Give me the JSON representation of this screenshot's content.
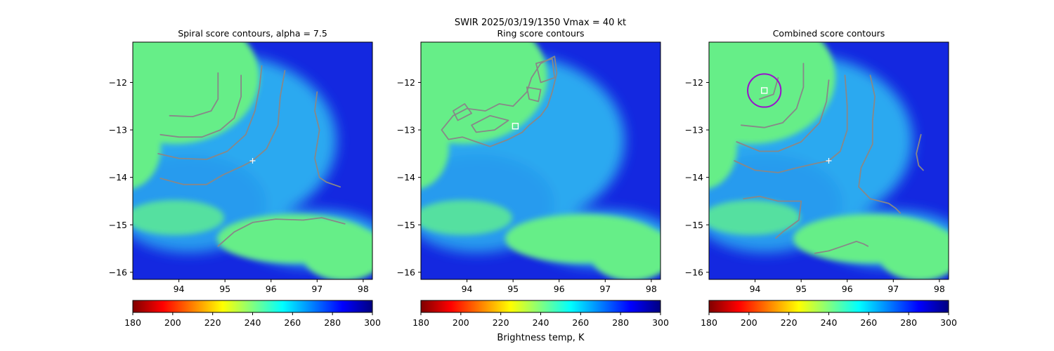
{
  "suptitle": "SWIR  2025/03/19/1350    Vmax = 40 kt",
  "colormap": {
    "name": "jet_r",
    "stops": [
      "#800000",
      "#ff0000",
      "#ff8000",
      "#ffff00",
      "#80ff80",
      "#00ffff",
      "#0080ff",
      "#0000ff",
      "#000080"
    ],
    "vmin": 180,
    "vmax": 300,
    "ticks": [
      "180",
      "200",
      "220",
      "240",
      "260",
      "280",
      "300"
    ],
    "label": "Brightness temp, K"
  },
  "colors": {
    "cloud_cold": "#66ee88",
    "cloud_mid": "#2fb8f2",
    "sea_warm": "#1428e0",
    "contour": "#888888",
    "marker": "#ffffff",
    "circle": "#9911cc"
  },
  "chart_data": [
    {
      "type": "heatmap",
      "title": "Spiral score contours, alpha =  7.5",
      "xlim": [
        93.0,
        98.2
      ],
      "ylim": [
        -16.15,
        -11.15
      ],
      "xticks": [
        "94",
        "95",
        "96",
        "97",
        "98"
      ],
      "yticks": [
        "−12",
        "−13",
        "−14",
        "−15",
        "−16"
      ],
      "center_cross": {
        "lon": 95.6,
        "lat": -13.65
      },
      "contours": [
        [
          [
            93.8,
            -12.7
          ],
          [
            94.3,
            -12.72
          ],
          [
            94.7,
            -12.6
          ],
          [
            94.85,
            -12.35
          ],
          [
            94.85,
            -11.8
          ]
        ],
        [
          [
            93.6,
            -13.1
          ],
          [
            94.0,
            -13.15
          ],
          [
            94.5,
            -13.15
          ],
          [
            94.9,
            -13.0
          ],
          [
            95.2,
            -12.75
          ],
          [
            95.35,
            -12.3
          ],
          [
            95.35,
            -11.85
          ]
        ],
        [
          [
            93.55,
            -13.5
          ],
          [
            94.0,
            -13.6
          ],
          [
            94.6,
            -13.62
          ],
          [
            95.05,
            -13.45
          ],
          [
            95.45,
            -13.1
          ],
          [
            95.65,
            -12.6
          ],
          [
            95.75,
            -12.1
          ],
          [
            95.8,
            -11.65
          ]
        ],
        [
          [
            93.6,
            -14.02
          ],
          [
            94.1,
            -14.15
          ],
          [
            94.6,
            -14.15
          ],
          [
            94.95,
            -13.95
          ],
          [
            95.4,
            -13.75
          ],
          [
            95.6,
            -13.65
          ],
          [
            95.9,
            -13.4
          ],
          [
            96.15,
            -12.9
          ],
          [
            96.2,
            -12.3
          ],
          [
            96.3,
            -11.75
          ]
        ],
        [
          [
            97.0,
            -12.2
          ],
          [
            96.95,
            -12.6
          ],
          [
            97.05,
            -13.0
          ],
          [
            96.95,
            -13.6
          ],
          [
            97.05,
            -14.0
          ],
          [
            97.2,
            -14.1
          ],
          [
            97.5,
            -14.2
          ]
        ],
        [
          [
            94.85,
            -15.45
          ],
          [
            95.2,
            -15.15
          ],
          [
            95.6,
            -14.95
          ],
          [
            96.1,
            -14.88
          ],
          [
            96.7,
            -14.9
          ],
          [
            97.1,
            -14.85
          ],
          [
            97.6,
            -14.98
          ]
        ]
      ],
      "circle": null,
      "square": null
    },
    {
      "type": "heatmap",
      "title": "Ring score contours",
      "xlim": [
        93.0,
        98.2
      ],
      "ylim": [
        -16.15,
        -11.15
      ],
      "xticks": [
        "94",
        "95",
        "96",
        "97",
        "98"
      ],
      "yticks": [
        "−12",
        "−13",
        "−14",
        "−15",
        "−16"
      ],
      "center_cross": null,
      "contours": [
        [
          [
            93.45,
            -13.0
          ],
          [
            93.7,
            -12.7
          ],
          [
            94.0,
            -12.55
          ],
          [
            94.4,
            -12.6
          ],
          [
            94.7,
            -12.45
          ],
          [
            95.0,
            -12.5
          ],
          [
            95.3,
            -12.2
          ],
          [
            95.4,
            -11.9
          ],
          [
            95.6,
            -11.6
          ],
          [
            95.9,
            -11.45
          ],
          [
            95.95,
            -11.8
          ],
          [
            95.85,
            -12.2
          ],
          [
            95.75,
            -12.5
          ],
          [
            95.6,
            -12.7
          ],
          [
            95.35,
            -12.9
          ],
          [
            95.2,
            -13.05
          ],
          [
            94.9,
            -13.2
          ],
          [
            94.5,
            -13.35
          ],
          [
            94.2,
            -13.25
          ],
          [
            93.9,
            -13.15
          ],
          [
            93.6,
            -13.2
          ],
          [
            93.45,
            -13.0
          ]
        ],
        [
          [
            94.1,
            -12.9
          ],
          [
            94.5,
            -12.7
          ],
          [
            94.9,
            -12.8
          ],
          [
            94.6,
            -13.0
          ],
          [
            94.2,
            -13.05
          ],
          [
            94.1,
            -12.9
          ]
        ],
        [
          [
            95.5,
            -11.6
          ],
          [
            95.85,
            -11.5
          ],
          [
            95.9,
            -11.9
          ],
          [
            95.6,
            -12.0
          ],
          [
            95.5,
            -11.6
          ]
        ],
        [
          [
            93.7,
            -12.6
          ],
          [
            93.95,
            -12.45
          ],
          [
            94.1,
            -12.65
          ],
          [
            93.8,
            -12.8
          ],
          [
            93.7,
            -12.6
          ]
        ],
        [
          [
            95.3,
            -12.1
          ],
          [
            95.6,
            -12.15
          ],
          [
            95.55,
            -12.4
          ],
          [
            95.35,
            -12.35
          ],
          [
            95.3,
            -12.1
          ]
        ]
      ],
      "circle": null,
      "square": {
        "lon": 95.05,
        "lat": -12.92
      }
    },
    {
      "type": "heatmap",
      "title": "Combined score contours",
      "xlim": [
        93.0,
        98.2
      ],
      "ylim": [
        -16.15,
        -11.15
      ],
      "xticks": [
        "94",
        "95",
        "96",
        "97",
        "98"
      ],
      "yticks": [
        "−12",
        "−13",
        "−14",
        "−15",
        "−16"
      ],
      "center_cross": {
        "lon": 95.6,
        "lat": -13.65
      },
      "contours": [
        [
          [
            94.1,
            -12.35
          ],
          [
            94.4,
            -12.25
          ],
          [
            94.5,
            -11.9
          ]
        ],
        [
          [
            93.7,
            -12.9
          ],
          [
            94.2,
            -12.95
          ],
          [
            94.6,
            -12.85
          ],
          [
            94.9,
            -12.55
          ],
          [
            95.05,
            -12.1
          ],
          [
            95.05,
            -11.6
          ]
        ],
        [
          [
            93.6,
            -13.25
          ],
          [
            94.1,
            -13.45
          ],
          [
            94.5,
            -13.45
          ],
          [
            95.0,
            -13.25
          ],
          [
            95.4,
            -12.85
          ],
          [
            95.55,
            -12.4
          ],
          [
            95.6,
            -11.95
          ]
        ],
        [
          [
            93.55,
            -13.65
          ],
          [
            94.0,
            -13.85
          ],
          [
            94.5,
            -13.9
          ],
          [
            94.9,
            -13.8
          ],
          [
            95.35,
            -13.7
          ],
          [
            95.6,
            -13.65
          ],
          [
            95.85,
            -13.45
          ],
          [
            96.0,
            -13.0
          ],
          [
            96.0,
            -12.5
          ],
          [
            95.95,
            -11.85
          ]
        ],
        [
          [
            96.5,
            -11.85
          ],
          [
            96.6,
            -12.3
          ],
          [
            96.55,
            -12.8
          ],
          [
            96.55,
            -13.3
          ],
          [
            96.3,
            -13.8
          ],
          [
            96.25,
            -14.2
          ],
          [
            96.5,
            -14.45
          ],
          [
            96.9,
            -14.55
          ],
          [
            97.05,
            -14.65
          ],
          [
            97.15,
            -14.75
          ]
        ],
        [
          [
            97.6,
            -13.1
          ],
          [
            97.5,
            -13.5
          ],
          [
            97.55,
            -13.75
          ],
          [
            97.65,
            -13.85
          ]
        ],
        [
          [
            93.75,
            -14.45
          ],
          [
            94.1,
            -14.4
          ],
          [
            94.5,
            -14.5
          ],
          [
            95.0,
            -14.5
          ],
          [
            94.95,
            -14.9
          ],
          [
            94.6,
            -15.15
          ],
          [
            94.45,
            -15.28
          ]
        ],
        [
          [
            95.3,
            -15.6
          ],
          [
            95.6,
            -15.55
          ],
          [
            95.9,
            -15.45
          ],
          [
            96.2,
            -15.35
          ],
          [
            96.35,
            -15.4
          ],
          [
            96.45,
            -15.45
          ]
        ]
      ],
      "circle": {
        "lon": 94.2,
        "lat": -12.17,
        "radius_lon": 0.36
      },
      "square": {
        "lon": 94.2,
        "lat": -12.17
      }
    }
  ]
}
